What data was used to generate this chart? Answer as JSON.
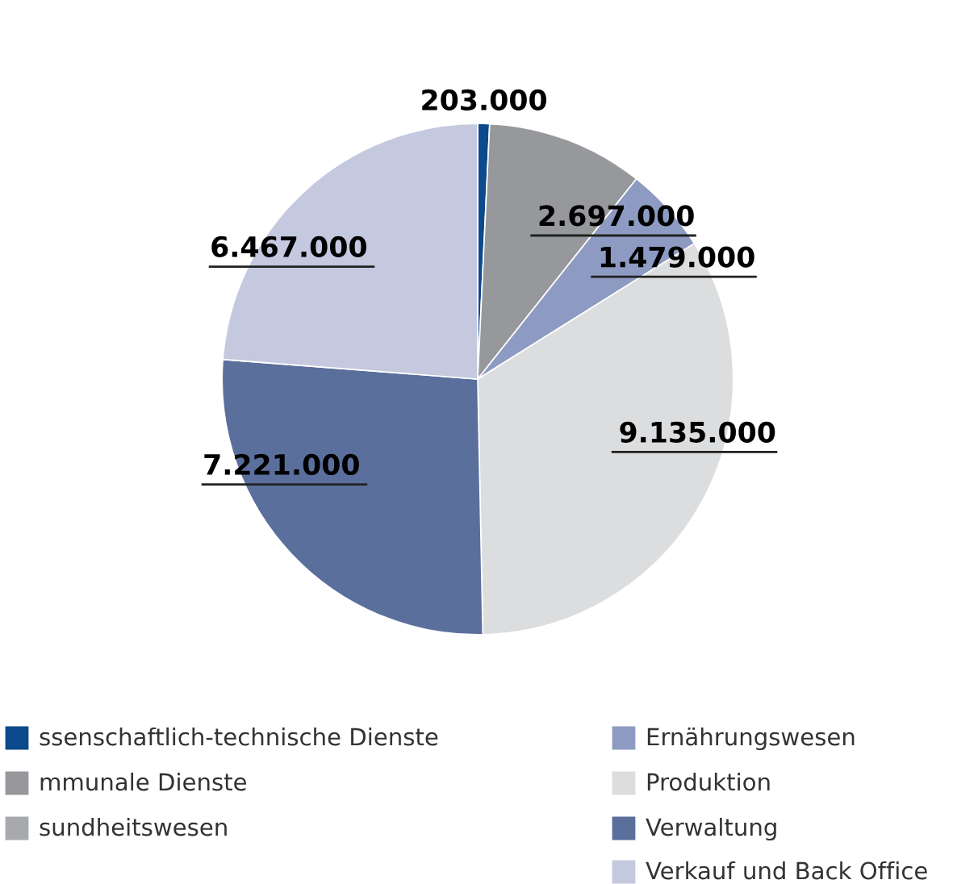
{
  "chart_data": {
    "type": "pie",
    "categories": [
      "ssenschaftlich-technische Dienste",
      "mmunale Dienste",
      "sundheitswesen",
      "Ernährungswesen",
      "Produktion",
      "Verwaltung",
      "Verkauf und Back Office"
    ],
    "values": [
      203000,
      2697000,
      null,
      1479000,
      9135000,
      7221000,
      6467000
    ],
    "colors": [
      "#0b4a8b",
      "#97989b",
      "#a7a9ac",
      "#8d9bc2",
      "#dcdddf",
      "#5b6f9c",
      "#c5c9df"
    ],
    "value_labels": [
      "203.000",
      "2.697.000",
      null,
      "1.479.000",
      "9.135.000",
      "7.221.000",
      "6.467.000"
    ],
    "legend": "bottom"
  }
}
